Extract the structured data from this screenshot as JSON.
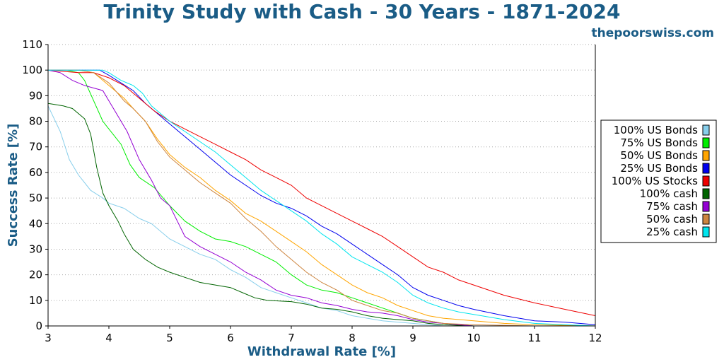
{
  "chart_data": {
    "type": "line",
    "title": "Trinity Study with Cash - 30 Years - 1871-2024",
    "subtitle": "thepoorswiss.com",
    "xlabel": "Withdrawal Rate [%]",
    "ylabel": "Success Rate [%]",
    "xlim": [
      3,
      12
    ],
    "ylim": [
      0,
      110
    ],
    "xticks": [
      "3",
      "4",
      "5",
      "6",
      "7",
      "8",
      "9",
      "10",
      "11",
      "12"
    ],
    "yticks": [
      "0",
      "10",
      "20",
      "30",
      "40",
      "50",
      "60",
      "70",
      "80",
      "90",
      "100",
      "110"
    ],
    "grid": "horizontal dotted",
    "legend_position": "right",
    "title_color": "#1a5c86",
    "series": [
      {
        "name": "100% US Bonds",
        "color": "#87ceeb",
        "x": [
          3,
          3.2,
          3.35,
          3.5,
          3.7,
          3.9,
          4,
          4.25,
          4.5,
          4.7,
          5,
          5.25,
          5.5,
          5.75,
          6,
          6.25,
          6.5,
          6.75,
          7,
          7.25,
          7.5,
          7.75,
          8,
          8.25,
          8.5,
          8.75,
          9,
          9.25,
          9.5,
          10,
          11,
          12
        ],
        "y": [
          86,
          76,
          65,
          59,
          53,
          50,
          48,
          46,
          42,
          40,
          34,
          31,
          28,
          26,
          22,
          19,
          15,
          13,
          11,
          9,
          7,
          6,
          4,
          3,
          2,
          1.5,
          1,
          0.5,
          0,
          0,
          0,
          0
        ]
      },
      {
        "name": "75% US Bonds",
        "color": "#00ee00",
        "x": [
          3,
          3.3,
          3.5,
          3.6,
          3.75,
          3.9,
          4,
          4.2,
          4.35,
          4.5,
          4.75,
          5,
          5.25,
          5.5,
          5.75,
          6,
          6.25,
          6.5,
          6.75,
          7,
          7.25,
          7.5,
          7.75,
          8,
          8.25,
          8.5,
          8.75,
          9,
          9.25,
          9.5,
          10,
          11,
          12
        ],
        "y": [
          100,
          100,
          99,
          96,
          88,
          80,
          77,
          71,
          63,
          58,
          54,
          47,
          41,
          37,
          34,
          33,
          31,
          28,
          25,
          20,
          16,
          14,
          13,
          11,
          9,
          7,
          5,
          3,
          2,
          1,
          0,
          0,
          0
        ]
      },
      {
        "name": "50% US Bonds",
        "color": "#ffa500",
        "x": [
          3,
          3.5,
          3.75,
          4,
          4.25,
          4.4,
          4.6,
          4.8,
          5,
          5.25,
          5.5,
          5.75,
          6,
          6.25,
          6.5,
          6.75,
          7,
          7.25,
          7.5,
          7.75,
          8,
          8.25,
          8.5,
          8.75,
          9,
          9.25,
          9.5,
          10,
          10.5,
          11,
          12
        ],
        "y": [
          100,
          100,
          99,
          94,
          89,
          85,
          80,
          73,
          67,
          62,
          58,
          53,
          49,
          44,
          41,
          37,
          33,
          29,
          24,
          20,
          16,
          13,
          11,
          8,
          6,
          4,
          3,
          2,
          1,
          0.5,
          0
        ]
      },
      {
        "name": "25% US Bonds",
        "color": "#0000ee",
        "x": [
          3,
          3.5,
          3.85,
          4,
          4.2,
          4.4,
          4.6,
          4.8,
          5,
          5.25,
          5.5,
          5.75,
          6,
          6.25,
          6.5,
          6.75,
          7,
          7.25,
          7.5,
          7.75,
          8,
          8.25,
          8.5,
          8.75,
          9,
          9.25,
          9.5,
          9.75,
          10,
          10.5,
          11,
          11.5,
          12
        ],
        "y": [
          100,
          100,
          100,
          98,
          95,
          92,
          87,
          83,
          79,
          74,
          69,
          64,
          59,
          55,
          51,
          48,
          46,
          43,
          39,
          36,
          32,
          28,
          24,
          20,
          15,
          12,
          10,
          8,
          6.5,
          4,
          2,
          1.5,
          0.5
        ]
      },
      {
        "name": "100% US Stocks",
        "color": "#ee0000",
        "x": [
          3,
          3.5,
          3.75,
          4,
          4.25,
          4.5,
          4.75,
          5,
          5.25,
          5.5,
          5.75,
          6,
          6.25,
          6.5,
          6.75,
          7,
          7.25,
          7.5,
          7.75,
          8,
          8.25,
          8.5,
          8.75,
          9,
          9.25,
          9.5,
          9.75,
          10,
          10.5,
          11,
          11.5,
          12
        ],
        "y": [
          100,
          99,
          99,
          97,
          94,
          89,
          84,
          80,
          77,
          74,
          71,
          68,
          65,
          61,
          58,
          55,
          50,
          47,
          44,
          41,
          38,
          35,
          31,
          27,
          23,
          21,
          18,
          16,
          12,
          9,
          6.5,
          4
        ]
      },
      {
        "name": "100% cash",
        "color": "#006400",
        "x": [
          3,
          3.25,
          3.4,
          3.6,
          3.7,
          3.8,
          3.9,
          4,
          4.15,
          4.25,
          4.4,
          4.6,
          4.8,
          5,
          5.25,
          5.5,
          5.75,
          6,
          6.2,
          6.4,
          6.6,
          7,
          7.25,
          7.5,
          7.75,
          8,
          8.25,
          8.5,
          8.75,
          9,
          9.25,
          9.5,
          10,
          11,
          12
        ],
        "y": [
          87,
          86,
          85,
          81,
          75,
          62,
          52,
          47,
          41,
          36,
          30,
          26,
          23,
          21,
          19,
          17,
          16,
          15,
          13,
          11,
          10,
          9.5,
          8.5,
          7,
          6.5,
          5.5,
          4,
          3,
          2.5,
          2,
          1,
          0.5,
          0,
          0,
          0
        ]
      },
      {
        "name": "75% cash",
        "color": "#9400d3",
        "x": [
          3,
          3.2,
          3.4,
          3.6,
          3.75,
          3.9,
          4,
          4.15,
          4.3,
          4.5,
          4.7,
          4.85,
          5,
          5.25,
          5.5,
          5.75,
          6,
          6.25,
          6.5,
          6.75,
          7,
          7.25,
          7.5,
          7.75,
          8,
          8.25,
          8.5,
          8.75,
          9,
          9.25,
          9.5,
          10,
          11,
          12
        ],
        "y": [
          100,
          99,
          96,
          94,
          93,
          92,
          88,
          82,
          76,
          65,
          57,
          50,
          47,
          35,
          31,
          28,
          25,
          21,
          18,
          14,
          12,
          11,
          9,
          8,
          6.5,
          5.5,
          5,
          4,
          2.5,
          1.5,
          1,
          0,
          0,
          0
        ]
      },
      {
        "name": "50% cash",
        "color": "#cd853f",
        "x": [
          3,
          3.5,
          3.75,
          4,
          4.25,
          4.4,
          4.6,
          4.8,
          5,
          5.25,
          5.5,
          5.75,
          6,
          6.25,
          6.5,
          6.75,
          7,
          7.25,
          7.5,
          7.75,
          8,
          8.25,
          8.5,
          8.75,
          9,
          9.25,
          9.5,
          10,
          11,
          12
        ],
        "y": [
          100,
          100,
          99,
          95,
          88,
          85,
          80,
          72,
          66,
          61,
          56,
          52,
          48,
          42,
          37,
          31,
          26,
          21,
          17,
          14,
          10,
          8,
          6,
          5,
          3,
          2,
          1,
          0.5,
          0,
          0
        ]
      },
      {
        "name": "25% cash",
        "color": "#00e5ee",
        "x": [
          3,
          3.5,
          3.9,
          4,
          4.2,
          4.4,
          4.55,
          4.7,
          5,
          5.25,
          5.5,
          5.75,
          6,
          6.25,
          6.5,
          6.75,
          7,
          7.25,
          7.5,
          7.75,
          8,
          8.25,
          8.5,
          8.75,
          9,
          9.25,
          9.5,
          9.75,
          10,
          10.5,
          11,
          11.5,
          12
        ],
        "y": [
          100,
          100,
          100,
          99,
          96,
          94,
          91,
          86,
          80,
          76,
          72,
          68,
          63,
          58,
          53,
          49,
          45,
          41,
          36,
          32,
          27,
          24,
          21,
          17,
          12,
          9,
          7,
          5.5,
          4.5,
          2.5,
          1,
          0.5,
          0
        ]
      }
    ]
  }
}
